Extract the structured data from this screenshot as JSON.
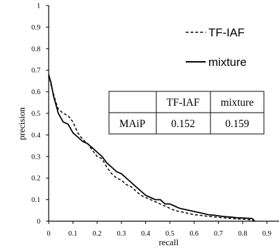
{
  "chart_data": {
    "type": "line",
    "title": "",
    "xlabel": "recall",
    "ylabel": "precision",
    "xlim": [
      0,
      0.95
    ],
    "ylim": [
      0,
      1
    ],
    "xticks": [
      "0",
      "0.1",
      "0.2",
      "0.3",
      "0.4",
      "0.5",
      "0.6",
      "0.7",
      "0.8",
      "0.9"
    ],
    "yticks": [
      "0",
      "0.1",
      "0.2",
      "0.3",
      "0.4",
      "0.5",
      "0.6",
      "0.7",
      "0.8",
      "0.9",
      "1"
    ],
    "grid": false,
    "legend_position": "top-right",
    "series": [
      {
        "name": "TF-IAF",
        "style": "dashed",
        "x": [
          0,
          0.01,
          0.02,
          0.03,
          0.04,
          0.05,
          0.06,
          0.08,
          0.1,
          0.12,
          0.14,
          0.16,
          0.18,
          0.2,
          0.22,
          0.24,
          0.26,
          0.28,
          0.3,
          0.32,
          0.34,
          0.36,
          0.38,
          0.4,
          0.42,
          0.44,
          0.46,
          0.48,
          0.5,
          0.52,
          0.54,
          0.56,
          0.58,
          0.6,
          0.62,
          0.64,
          0.66,
          0.68,
          0.7,
          0.72,
          0.74,
          0.76,
          0.78,
          0.8,
          0.82,
          0.84,
          0.85
        ],
        "y": [
          0.68,
          0.63,
          0.59,
          0.55,
          0.52,
          0.51,
          0.5,
          0.49,
          0.46,
          0.41,
          0.38,
          0.36,
          0.33,
          0.3,
          0.29,
          0.25,
          0.22,
          0.2,
          0.19,
          0.17,
          0.16,
          0.14,
          0.12,
          0.11,
          0.1,
          0.09,
          0.08,
          0.07,
          0.06,
          0.05,
          0.045,
          0.04,
          0.035,
          0.03,
          0.028,
          0.025,
          0.022,
          0.02,
          0.018,
          0.016,
          0.014,
          0.012,
          0.01,
          0.01,
          0.008,
          0.005,
          0.0
        ]
      },
      {
        "name": "mixture",
        "style": "solid",
        "x": [
          0,
          0.01,
          0.02,
          0.03,
          0.04,
          0.05,
          0.06,
          0.08,
          0.1,
          0.12,
          0.14,
          0.16,
          0.18,
          0.2,
          0.22,
          0.24,
          0.26,
          0.28,
          0.3,
          0.32,
          0.34,
          0.36,
          0.38,
          0.4,
          0.42,
          0.44,
          0.46,
          0.48,
          0.5,
          0.52,
          0.54,
          0.56,
          0.58,
          0.6,
          0.62,
          0.64,
          0.66,
          0.68,
          0.7,
          0.72,
          0.74,
          0.76,
          0.78,
          0.8,
          0.82,
          0.84,
          0.85
        ],
        "y": [
          0.68,
          0.64,
          0.58,
          0.54,
          0.5,
          0.48,
          0.46,
          0.45,
          0.41,
          0.39,
          0.37,
          0.36,
          0.34,
          0.32,
          0.3,
          0.27,
          0.25,
          0.23,
          0.22,
          0.2,
          0.18,
          0.16,
          0.14,
          0.12,
          0.11,
          0.1,
          0.1,
          0.08,
          0.08,
          0.07,
          0.06,
          0.055,
          0.05,
          0.045,
          0.04,
          0.035,
          0.03,
          0.028,
          0.025,
          0.022,
          0.02,
          0.018,
          0.016,
          0.015,
          0.014,
          0.012,
          0.0
        ]
      }
    ],
    "table": {
      "headers": [
        "",
        "TF-IAF",
        "mixture"
      ],
      "rows": [
        [
          "MAiP",
          "0.152",
          "0.159"
        ]
      ]
    }
  }
}
